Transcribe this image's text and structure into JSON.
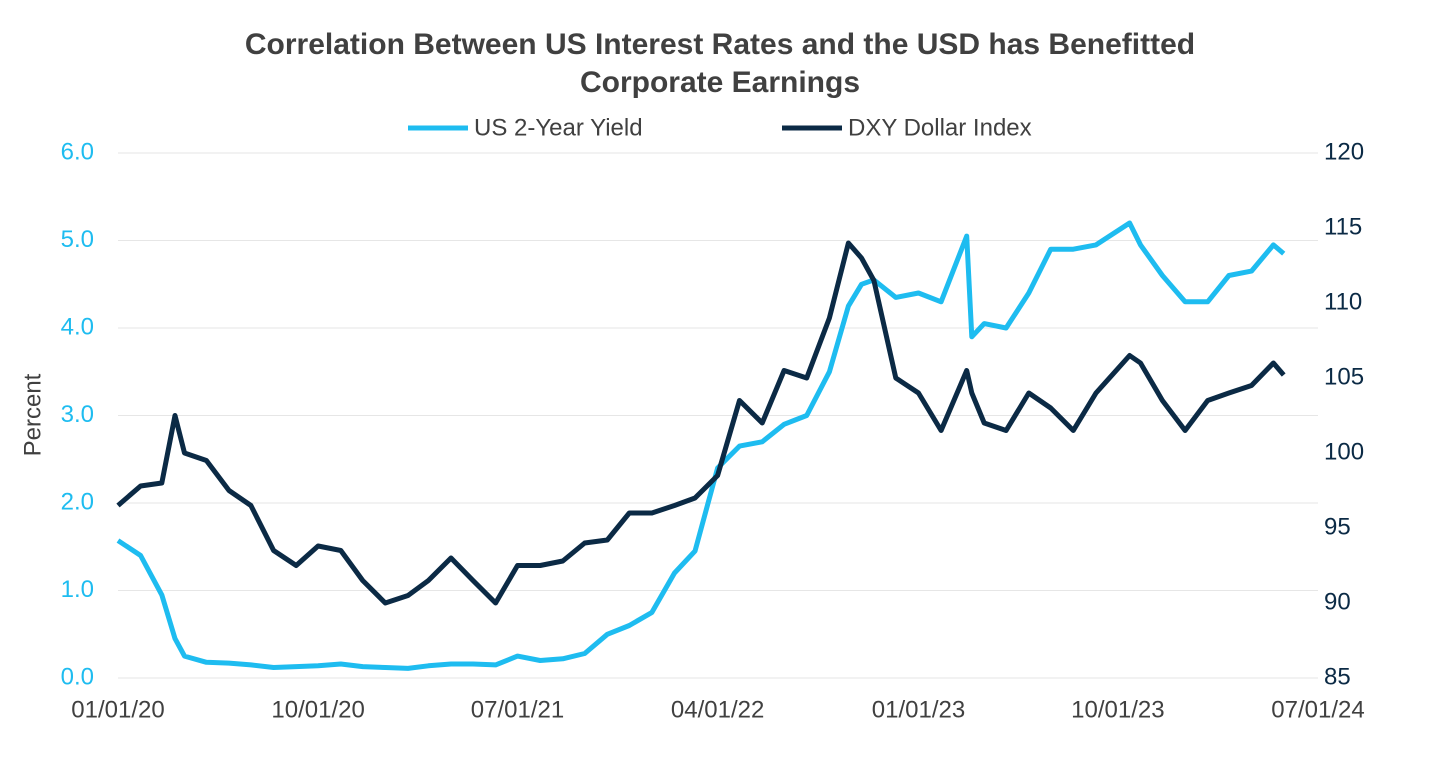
{
  "chart_data": {
    "type": "line",
    "title": "Correlation Between US Interest Rates and the USD has Benefitted Corporate Earnings",
    "ylabel": "Percent",
    "x": [
      "01/01/20",
      "02/01/20",
      "03/01/20",
      "03/19/20",
      "04/01/20",
      "05/01/20",
      "06/01/20",
      "07/01/20",
      "08/01/20",
      "09/01/20",
      "10/01/20",
      "11/01/20",
      "12/01/20",
      "01/01/21",
      "02/01/21",
      "03/01/21",
      "04/01/21",
      "05/01/21",
      "06/01/21",
      "07/01/21",
      "08/01/21",
      "09/01/21",
      "10/01/21",
      "11/01/21",
      "12/01/21",
      "01/01/22",
      "02/01/22",
      "03/01/22",
      "04/01/22",
      "05/01/22",
      "06/01/22",
      "07/01/22",
      "08/01/22",
      "09/01/22",
      "09/27/22",
      "10/15/22",
      "11/01/22",
      "12/01/22",
      "01/01/23",
      "02/01/23",
      "03/08/23",
      "03/15/23",
      "04/01/23",
      "05/01/23",
      "06/01/23",
      "07/01/23",
      "08/01/23",
      "09/01/23",
      "10/17/23",
      "11/01/23",
      "12/01/23",
      "01/01/24",
      "02/01/24",
      "03/01/24",
      "04/01/24",
      "05/01/24",
      "05/15/24"
    ],
    "series": [
      {
        "name": "US 2-Year Yield",
        "color": "#1ebcf0",
        "values": [
          1.57,
          1.4,
          0.95,
          0.45,
          0.25,
          0.18,
          0.17,
          0.15,
          0.12,
          0.13,
          0.14,
          0.16,
          0.13,
          0.12,
          0.11,
          0.14,
          0.16,
          0.16,
          0.15,
          0.25,
          0.2,
          0.22,
          0.28,
          0.5,
          0.6,
          0.75,
          1.2,
          1.45,
          2.4,
          2.65,
          2.7,
          2.9,
          3.0,
          3.5,
          4.25,
          4.5,
          4.55,
          4.35,
          4.4,
          4.3,
          5.05,
          3.9,
          4.05,
          4.0,
          4.4,
          4.9,
          4.9,
          4.95,
          5.2,
          4.95,
          4.6,
          4.3,
          4.3,
          4.6,
          4.65,
          4.95,
          4.85
        ]
      },
      {
        "name": "DXY Dollar Index",
        "color": "#0b2a45",
        "axis": "y2",
        "values": [
          96.5,
          97.8,
          98.0,
          102.5,
          100.0,
          99.5,
          97.5,
          96.5,
          93.5,
          92.5,
          93.8,
          93.5,
          91.5,
          90.0,
          90.5,
          91.5,
          93.0,
          91.5,
          90.0,
          92.5,
          92.5,
          92.8,
          94.0,
          94.2,
          96.0,
          96.0,
          96.5,
          97.0,
          98.5,
          103.5,
          102.0,
          105.5,
          105.0,
          109.0,
          114.0,
          113.0,
          111.5,
          105.0,
          104.0,
          101.5,
          105.5,
          104.0,
          102.0,
          101.5,
          104.0,
          103.0,
          101.5,
          104.0,
          106.5,
          106.0,
          103.5,
          101.5,
          103.5,
          104.0,
          104.5,
          106.0,
          105.2
        ]
      }
    ],
    "xlim": [
      "01/01/20",
      "07/01/24"
    ],
    "xticks": [
      "01/01/20",
      "10/01/20",
      "07/01/21",
      "04/01/22",
      "01/01/23",
      "10/01/23",
      "07/01/24"
    ],
    "ylim": [
      0,
      6
    ],
    "yticks": [
      {
        "value": 0,
        "label": "0.0"
      },
      {
        "value": 1,
        "label": "1.0"
      },
      {
        "value": 2,
        "label": "2.0"
      },
      {
        "value": 3,
        "label": "3.0"
      },
      {
        "value": 4,
        "label": "4.0"
      },
      {
        "value": 5,
        "label": "5.0"
      },
      {
        "value": 6,
        "label": "6.0"
      }
    ],
    "y2lim": [
      85,
      120
    ],
    "y2ticks": [
      85,
      90,
      95,
      100,
      105,
      110,
      115,
      120
    ],
    "grid": true,
    "legend": "top"
  }
}
